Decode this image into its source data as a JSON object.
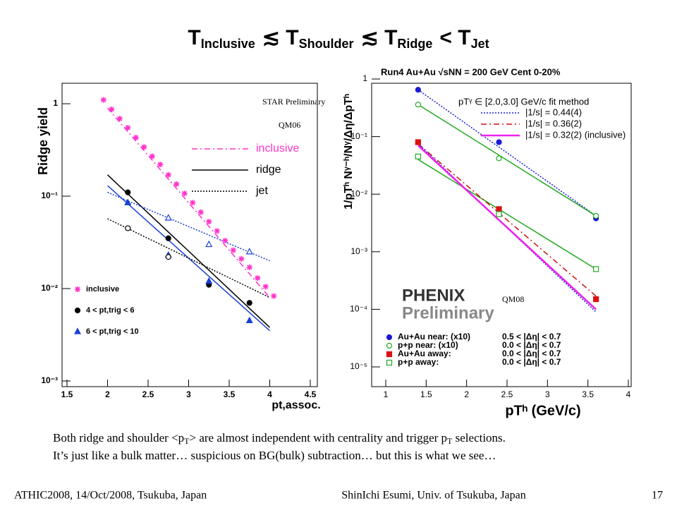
{
  "slide": {
    "title_terms": [
      {
        "symbol": "T",
        "sub": "Inclusive"
      },
      {
        "symbol": "T",
        "sub": "Shoulder"
      },
      {
        "symbol": "T",
        "sub": "Ridge"
      },
      {
        "symbol": "T",
        "sub": "Jet"
      }
    ],
    "title_relations": [
      "≲",
      "≲",
      "<"
    ],
    "caption_line1": [
      "Both ridge and shoulder <p",
      "T",
      "> are almost independent with centrality and trigger p",
      "T",
      " selections."
    ],
    "caption_line2": "It’s just like a bulk matter… suspicious on BG(bulk) subtraction… but this is what we see…",
    "footer_left": "ATHIC2008, 14/Oct/2008, Tsukuba, Japan",
    "footer_center": "ShinIchi Esumi, Univ. of Tsukuba, Japan",
    "footer_right": "17"
  },
  "chart_data": [
    {
      "type": "scatter",
      "ylabel": "Ridge yield",
      "xlabel": "pt,assoc.",
      "log_y": true,
      "annotations": [
        "STAR Preliminary",
        "QM06"
      ],
      "xlim": [
        1.5,
        4.5
      ],
      "xticks": [
        1.5,
        2,
        2.5,
        3,
        3.5,
        4,
        4.5
      ],
      "ylim": [
        0.001,
        2
      ],
      "yticks": [
        {
          "value": 0.001,
          "label": "10⁻³"
        },
        {
          "value": 0.01,
          "label": "10⁻²"
        },
        {
          "value": 0.1,
          "label": "10⁻¹"
        },
        1
      ],
      "series": [
        {
          "name": "inclusive",
          "color": "#ff33cc",
          "marker": "star",
          "filled": true,
          "x": [
            1.95,
            2.05,
            2.15,
            2.25,
            2.35,
            2.45,
            2.55,
            2.65,
            2.75,
            2.85,
            2.95,
            3.05,
            3.15,
            3.25,
            3.35,
            3.45,
            3.55,
            3.65,
            3.75,
            3.85,
            3.95,
            4.05
          ],
          "values": [
            1.1,
            0.87,
            0.69,
            0.55,
            0.43,
            0.34,
            0.27,
            0.22,
            0.17,
            0.135,
            0.107,
            0.085,
            0.067,
            0.053,
            0.042,
            0.033,
            0.026,
            0.021,
            0.017,
            0.013,
            0.0105,
            0.0083
          ]
        },
        {
          "name": "4 < pt,trig < 6",
          "color": "#000000",
          "marker": "circle",
          "filled": true,
          "x": [
            2.25,
            2.75,
            3.25,
            3.75
          ],
          "values": [
            0.11,
            0.035,
            0.011,
            0.007
          ]
        },
        {
          "name": "6 < pt,trig < 10",
          "color": "#1a3fd6",
          "marker": "triangle",
          "filled": true,
          "x": [
            2.25,
            2.75,
            3.25,
            3.75
          ],
          "values": [
            0.085,
            0.023,
            0.012,
            0.0045
          ]
        },
        {
          "color": "#000000",
          "marker": "circle",
          "filled": false,
          "x": [
            2.25,
            2.75
          ],
          "values": [
            0.045,
            0.022
          ]
        },
        {
          "color": "#1a3fd6",
          "marker": "triangle",
          "filled": false,
          "x": [
            2.75,
            3.25,
            3.75
          ],
          "values": [
            0.058,
            0.03,
            0.025
          ]
        }
      ],
      "fits": [
        {
          "color": "#ff33cc",
          "style": "dashdot",
          "x": [
            2,
            4
          ],
          "values": [
            0.9,
            0.008
          ]
        },
        {
          "color": "#000000",
          "style": "solid",
          "x": [
            2,
            4
          ],
          "values": [
            0.17,
            0.0038
          ]
        },
        {
          "color": "#1a3fd6",
          "style": "solid",
          "x": [
            2,
            4
          ],
          "values": [
            0.13,
            0.0035
          ]
        },
        {
          "color": "#000000",
          "style": "dotted",
          "x": [
            2,
            4
          ],
          "values": [
            0.057,
            0.008
          ]
        },
        {
          "color": "#1a3fd6",
          "style": "dotted",
          "x": [
            2,
            4
          ],
          "values": [
            0.11,
            0.02
          ]
        }
      ],
      "style_legend": [
        {
          "label": "inclusive",
          "color": "#ff33cc",
          "style": "dashdot"
        },
        {
          "label": "ridge",
          "color": "#000000",
          "style": "solid"
        },
        {
          "label": "jet",
          "color": "#000000",
          "style": "dotted"
        }
      ]
    },
    {
      "type": "scatter",
      "title": "Run4 Au+Au √sNN = 200 GeV Cent 0-20%",
      "ylabel": "1/pTʰ Nᵞ⁻ʰ/Nᵞ/Δη/ΔpTʰ",
      "xlabel": "pTʰ (GeV/c)",
      "log_y": true,
      "annotations": [
        "PHENIX",
        "Preliminary",
        "QM08"
      ],
      "fit_header": "pTᵞ ∈ [2.0,3.0] GeV/c   fit method",
      "xlim": [
        1,
        4
      ],
      "xticks": [
        1,
        1.5,
        2,
        2.5,
        3,
        3.5,
        4
      ],
      "ylim": [
        1e-05,
        1
      ],
      "yticks": [
        {
          "value": 1e-05,
          "label": "10⁻⁵"
        },
        {
          "value": 0.0001,
          "label": "10⁻⁴"
        },
        {
          "value": 0.001,
          "label": "10⁻³"
        },
        {
          "value": 0.01,
          "label": "10⁻²"
        },
        {
          "value": 0.1,
          "label": "10⁻¹"
        },
        1
      ],
      "series": [
        {
          "name": "Au+Au near: (x10)",
          "range": "0.5 < |Δη| < 0.7",
          "color": "#1a1ad6",
          "marker": "circle",
          "filled": true,
          "x": [
            1.4,
            2.4,
            3.6
          ],
          "values": [
            0.65,
            0.08,
            0.0038
          ]
        },
        {
          "name": "p+p near: (x10)",
          "range": "0.0 < |Δη| < 0.7",
          "color": "#22aa22",
          "marker": "circle",
          "filled": false,
          "x": [
            1.4,
            2.4,
            3.6
          ],
          "values": [
            0.36,
            0.042,
            0.0042
          ]
        },
        {
          "name": "Au+Au away:",
          "range": "0.0 < |Δη| < 0.7",
          "color": "#dd1111",
          "marker": "square",
          "filled": true,
          "x": [
            1.4,
            2.4,
            3.6
          ],
          "values": [
            0.08,
            0.0055,
            0.00015
          ]
        },
        {
          "name": "p+p away:",
          "range": "0.0 < |Δη| < 0.7",
          "color": "#22aa22",
          "marker": "square",
          "filled": false,
          "x": [
            1.4,
            2.4,
            3.6
          ],
          "values": [
            0.045,
            0.0045,
            0.0005
          ]
        }
      ],
      "fits": [
        {
          "color": "#1a1ad6",
          "style": "dotted",
          "x": [
            1.4,
            3.6
          ],
          "values": [
            0.65,
            0.0042
          ]
        },
        {
          "color": "#22aa22",
          "style": "solid",
          "x": [
            1.4,
            3.6
          ],
          "values": [
            0.36,
            0.0042
          ]
        },
        {
          "color": "#22aa22",
          "style": "solid",
          "x": [
            1.4,
            3.6
          ],
          "values": [
            0.04,
            0.0005
          ]
        },
        {
          "color": "#cc1111",
          "style": "dashdot",
          "x": [
            1.4,
            3.6
          ],
          "values": [
            0.075,
            0.00017
          ]
        },
        {
          "color": "#1a1ad6",
          "style": "dotted",
          "x": [
            1.4,
            3.6
          ],
          "values": [
            0.075,
            9e-05
          ]
        },
        {
          "color": "#ee22ee",
          "style": "thick",
          "x": [
            1.4,
            3.6
          ],
          "values": [
            0.07,
            0.0001
          ]
        }
      ],
      "style_legend": [
        {
          "label": "|1/s| = 0.44(4)",
          "color": "#1a1ad6",
          "style": "dotted"
        },
        {
          "label": "|1/s| = 0.36(2)",
          "color": "#cc1111",
          "style": "dashdot"
        },
        {
          "label": "|1/s| = 0.32(2) (inclusive)",
          "color": "#ee22ee",
          "style": "thick"
        }
      ]
    }
  ]
}
